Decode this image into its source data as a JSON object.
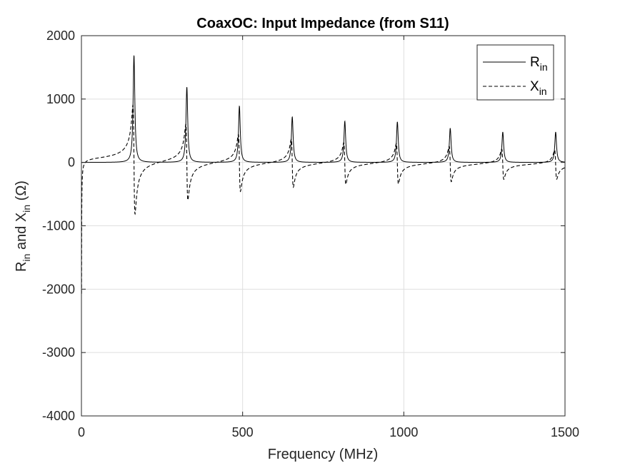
{
  "chart_data": {
    "type": "line",
    "title": "CoaxOC: Input Impedance (from S11)",
    "xlabel": "Frequency (MHz)",
    "ylabel": {
      "parts": [
        "R",
        "in",
        " and X",
        "in",
        " (Ω)"
      ]
    },
    "xlim": [
      0,
      1500
    ],
    "ylim": [
      -4000,
      2000
    ],
    "xticks": [
      0,
      500,
      1000,
      1500
    ],
    "yticks": [
      -4000,
      -3000,
      -2000,
      -1000,
      0,
      1000,
      2000
    ],
    "grid": true,
    "legend_position": "top-right",
    "resonance": {
      "frequencies_mhz": [
        163,
        327,
        490,
        654,
        817,
        980,
        1144,
        1307,
        1471
      ],
      "r_peaks": [
        1690,
        1190,
        890,
        720,
        650,
        640,
        540,
        480,
        480
      ],
      "x_neg_peaks": [
        -860,
        -600,
        -450,
        -380,
        -330,
        -320,
        -280,
        -240,
        -230
      ]
    },
    "series": [
      {
        "name": {
          "main": "R",
          "sub": "in"
        },
        "style": "solid",
        "color": "#000000"
      },
      {
        "name": {
          "main": "X",
          "sub": "in"
        },
        "style": "dashed",
        "color": "#000000"
      }
    ]
  }
}
